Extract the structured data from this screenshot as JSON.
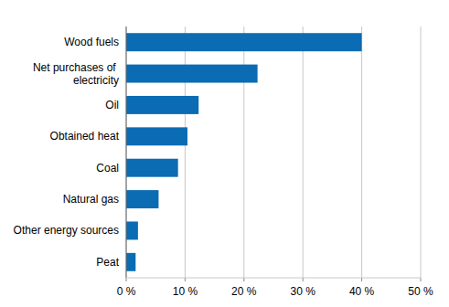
{
  "chart_data": {
    "type": "bar",
    "orientation": "horizontal",
    "categories": [
      "Wood fuels",
      "Net purchases of electricity",
      "Oil",
      "Obtained heat",
      "Coal",
      "Natural gas",
      "Other energy sources",
      "Peat"
    ],
    "values": [
      40.0,
      22.3,
      12.3,
      10.4,
      8.8,
      5.5,
      2.0,
      1.6
    ],
    "color": "#0b6cb3",
    "xlim": [
      0,
      50
    ],
    "xticks": [
      {
        "value": 0,
        "label": "0 %"
      },
      {
        "value": 10,
        "label": "10 %"
      },
      {
        "value": 20,
        "label": "20 %"
      },
      {
        "value": 30,
        "label": "30 %"
      },
      {
        "value": 40,
        "label": "40 %"
      },
      {
        "value": 50,
        "label": "50 %"
      }
    ],
    "grid": true
  }
}
